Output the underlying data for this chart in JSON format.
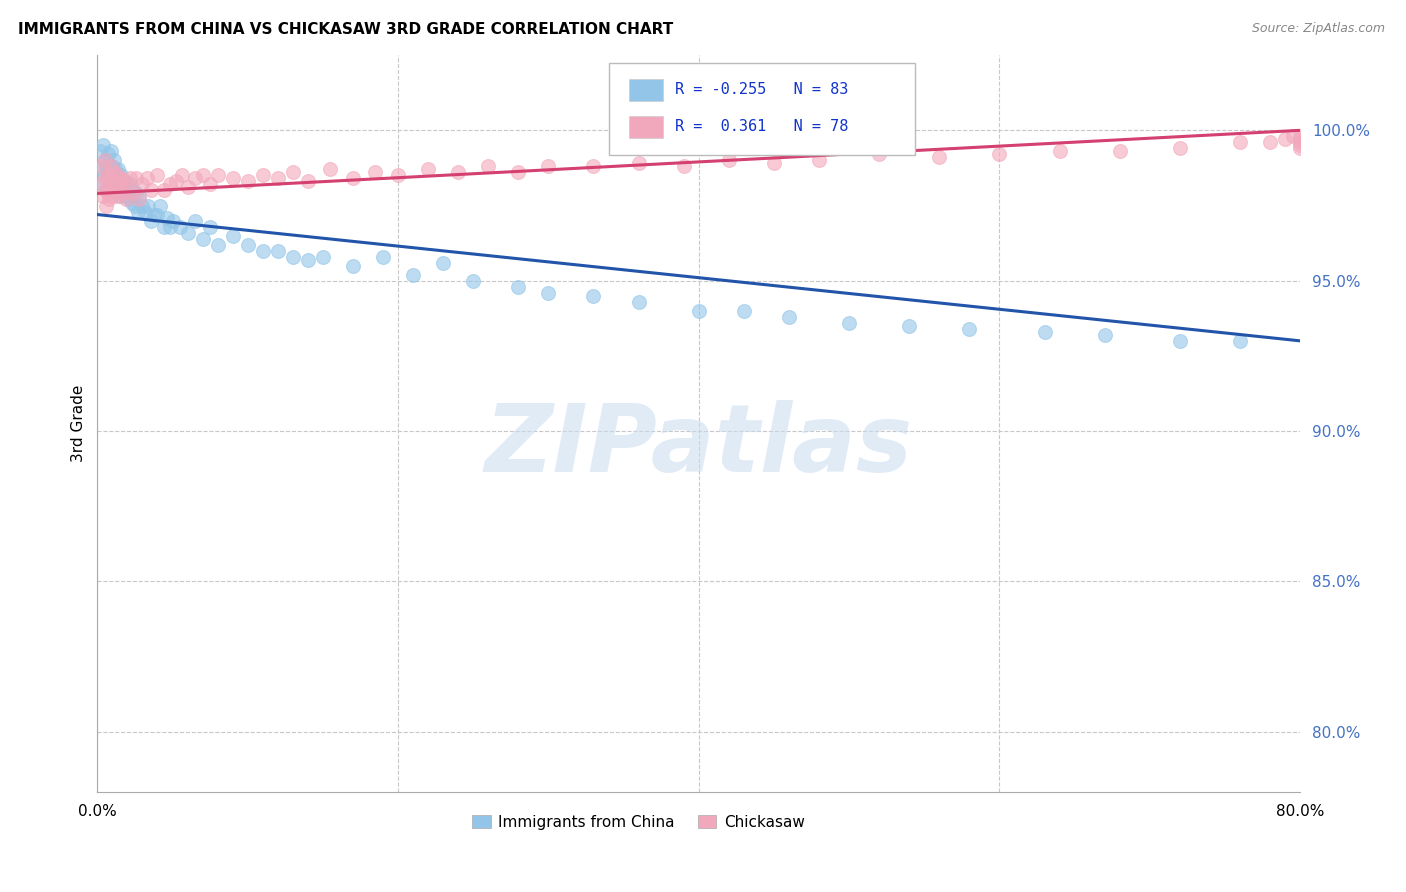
{
  "title": "IMMIGRANTS FROM CHINA VS CHICKASAW 3RD GRADE CORRELATION CHART",
  "source": "Source: ZipAtlas.com",
  "ylabel": "3rd Grade",
  "ytick_values": [
    0.8,
    0.85,
    0.9,
    0.95,
    1.0
  ],
  "xlim": [
    0.0,
    0.8
  ],
  "ylim": [
    0.78,
    1.025
  ],
  "legend_R_blue": "-0.255",
  "legend_N_blue": "83",
  "legend_R_pink": "0.361",
  "legend_N_pink": "78",
  "blue_color": "#92C5E8",
  "pink_color": "#F2A8BC",
  "blue_line_color": "#2255AA",
  "pink_line_color": "#D44070",
  "watermark_text": "ZIPatlas",
  "blue_x": [
    0.002,
    0.003,
    0.004,
    0.004,
    0.005,
    0.005,
    0.006,
    0.006,
    0.007,
    0.007,
    0.008,
    0.008,
    0.009,
    0.009,
    0.01,
    0.01,
    0.011,
    0.011,
    0.012,
    0.012,
    0.013,
    0.013,
    0.014,
    0.014,
    0.015,
    0.015,
    0.016,
    0.016,
    0.017,
    0.018,
    0.019,
    0.02,
    0.021,
    0.022,
    0.023,
    0.024,
    0.025,
    0.026,
    0.027,
    0.028,
    0.03,
    0.032,
    0.034,
    0.036,
    0.038,
    0.04,
    0.042,
    0.044,
    0.046,
    0.048,
    0.05,
    0.055,
    0.06,
    0.065,
    0.07,
    0.075,
    0.08,
    0.09,
    0.1,
    0.11,
    0.12,
    0.13,
    0.14,
    0.15,
    0.17,
    0.19,
    0.21,
    0.23,
    0.25,
    0.28,
    0.3,
    0.33,
    0.36,
    0.4,
    0.43,
    0.46,
    0.5,
    0.54,
    0.58,
    0.63,
    0.67,
    0.72,
    0.76
  ],
  "blue_y": [
    0.993,
    0.987,
    0.995,
    0.982,
    0.99,
    0.985,
    0.988,
    0.98,
    0.992,
    0.985,
    0.988,
    0.981,
    0.993,
    0.98,
    0.988,
    0.983,
    0.99,
    0.984,
    0.987,
    0.981,
    0.985,
    0.98,
    0.987,
    0.982,
    0.983,
    0.978,
    0.985,
    0.979,
    0.98,
    0.983,
    0.978,
    0.982,
    0.977,
    0.982,
    0.976,
    0.98,
    0.975,
    0.979,
    0.973,
    0.978,
    0.975,
    0.973,
    0.975,
    0.97,
    0.972,
    0.972,
    0.975,
    0.968,
    0.971,
    0.968,
    0.97,
    0.968,
    0.966,
    0.97,
    0.964,
    0.968,
    0.962,
    0.965,
    0.962,
    0.96,
    0.96,
    0.958,
    0.957,
    0.958,
    0.955,
    0.958,
    0.952,
    0.956,
    0.95,
    0.948,
    0.946,
    0.945,
    0.943,
    0.94,
    0.94,
    0.938,
    0.936,
    0.935,
    0.934,
    0.933,
    0.932,
    0.93,
    0.93
  ],
  "pink_x": [
    0.002,
    0.003,
    0.004,
    0.005,
    0.005,
    0.006,
    0.006,
    0.007,
    0.007,
    0.008,
    0.008,
    0.009,
    0.009,
    0.01,
    0.01,
    0.011,
    0.012,
    0.013,
    0.014,
    0.015,
    0.016,
    0.017,
    0.018,
    0.019,
    0.02,
    0.022,
    0.024,
    0.026,
    0.028,
    0.03,
    0.033,
    0.036,
    0.04,
    0.044,
    0.048,
    0.052,
    0.056,
    0.06,
    0.065,
    0.07,
    0.075,
    0.08,
    0.09,
    0.1,
    0.11,
    0.12,
    0.13,
    0.14,
    0.155,
    0.17,
    0.185,
    0.2,
    0.22,
    0.24,
    0.26,
    0.28,
    0.3,
    0.33,
    0.36,
    0.39,
    0.42,
    0.45,
    0.48,
    0.52,
    0.56,
    0.6,
    0.64,
    0.68,
    0.72,
    0.76,
    0.78,
    0.79,
    0.795,
    0.8,
    0.8,
    0.8,
    0.8,
    0.8
  ],
  "pink_y": [
    0.982,
    0.988,
    0.978,
    0.984,
    0.99,
    0.98,
    0.975,
    0.985,
    0.979,
    0.984,
    0.977,
    0.981,
    0.988,
    0.978,
    0.983,
    0.986,
    0.98,
    0.985,
    0.978,
    0.982,
    0.984,
    0.979,
    0.983,
    0.977,
    0.981,
    0.984,
    0.979,
    0.984,
    0.977,
    0.982,
    0.984,
    0.98,
    0.985,
    0.98,
    0.982,
    0.983,
    0.985,
    0.981,
    0.984,
    0.985,
    0.982,
    0.985,
    0.984,
    0.983,
    0.985,
    0.984,
    0.986,
    0.983,
    0.987,
    0.984,
    0.986,
    0.985,
    0.987,
    0.986,
    0.988,
    0.986,
    0.988,
    0.988,
    0.989,
    0.988,
    0.99,
    0.989,
    0.99,
    0.992,
    0.991,
    0.992,
    0.993,
    0.993,
    0.994,
    0.996,
    0.996,
    0.997,
    0.998,
    0.998,
    0.997,
    0.996,
    0.995,
    0.994
  ],
  "blue_trendline_x": [
    0.0,
    0.8
  ],
  "blue_trendline_y": [
    0.972,
    0.93
  ],
  "pink_trendline_x": [
    0.0,
    0.8
  ],
  "pink_trendline_y": [
    0.979,
    1.0
  ]
}
